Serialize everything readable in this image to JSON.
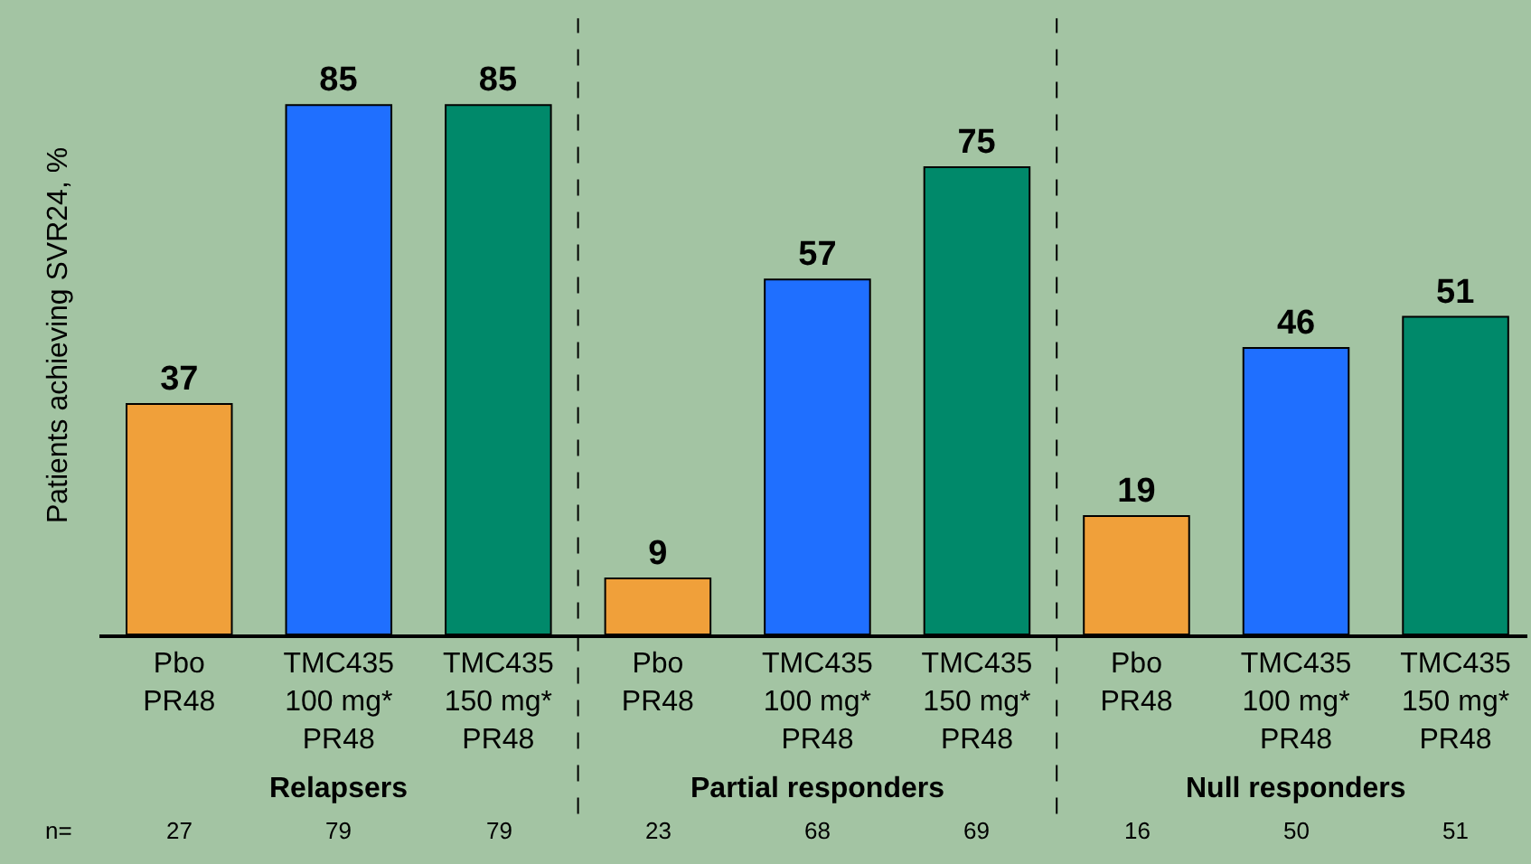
{
  "chart_data": {
    "type": "bar",
    "ylabel": "Patients achieving SVR24, %",
    "categories": [
      "Pbo\nPR48",
      "TMC435\n100 mg*\nPR48",
      "TMC435\n150 mg*\nPR48",
      "Pbo\nPR48",
      "TMC435\n100 mg*\nPR48",
      "TMC435\n150 mg*\nPR48",
      "Pbo\nPR48",
      "TMC435\n100 mg*\nPR48",
      "TMC435\n150 mg*\nPR48"
    ],
    "values": [
      37,
      85,
      85,
      9,
      57,
      75,
      19,
      46,
      51
    ],
    "colors": [
      "#f0a03a",
      "#1f6fff",
      "#00896a",
      "#f0a03a",
      "#1f6fff",
      "#00896a",
      "#f0a03a",
      "#1f6fff",
      "#00896a"
    ],
    "data_labels": true,
    "annotations": [
      "Relapsers",
      "Partial responders",
      "Null responders",
      "n=",
      "27",
      "79",
      "79",
      "23",
      "68",
      "69",
      "16",
      "50",
      "51"
    ],
    "tick_labels": "x",
    "grid": false,
    "legend": false
  }
}
